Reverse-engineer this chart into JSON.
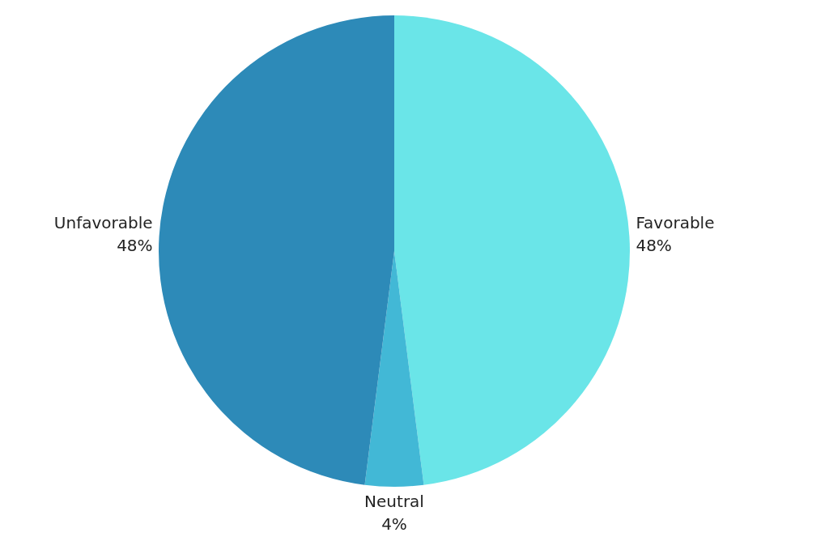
{
  "chart_data": {
    "type": "pie",
    "categories": [
      "Favorable",
      "Neutral",
      "Unfavorable"
    ],
    "values": [
      48,
      4,
      48
    ],
    "value_labels": [
      "48%",
      "4%",
      "48%"
    ],
    "colors": [
      "#6ae5e8",
      "#42b8d6",
      "#2d8ab8"
    ]
  }
}
